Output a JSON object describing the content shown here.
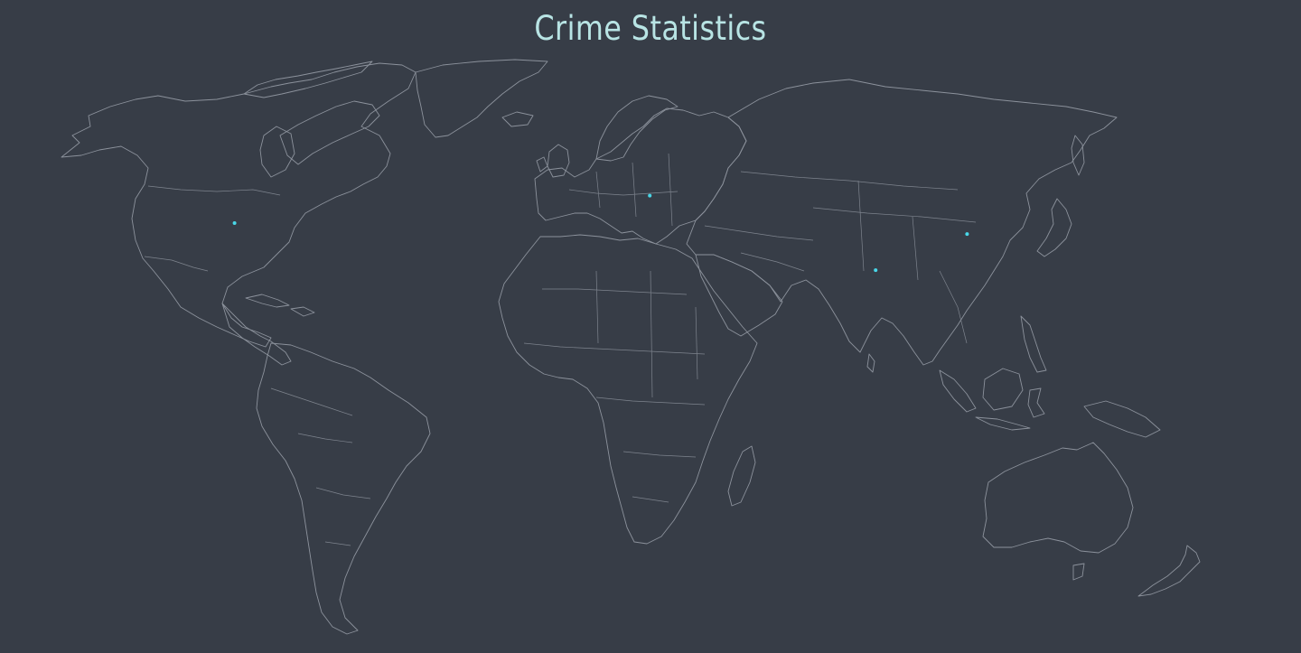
{
  "title": "Crime Statistics",
  "colors": {
    "background": "#373d47",
    "title": "#b8e4e4",
    "outline": "#8c929c",
    "marker": "#49d7e8"
  },
  "map": {
    "projection": "equirectangular",
    "markers": [
      {
        "name": "united-states",
        "lon": -98.5,
        "lat": 39.8
      },
      {
        "name": "central-europe",
        "lon": 16.4,
        "lat": 49.6
      },
      {
        "name": "india",
        "lon": 78.9,
        "lat": 23.0
      },
      {
        "name": "china",
        "lon": 104.2,
        "lat": 35.9
      }
    ]
  }
}
